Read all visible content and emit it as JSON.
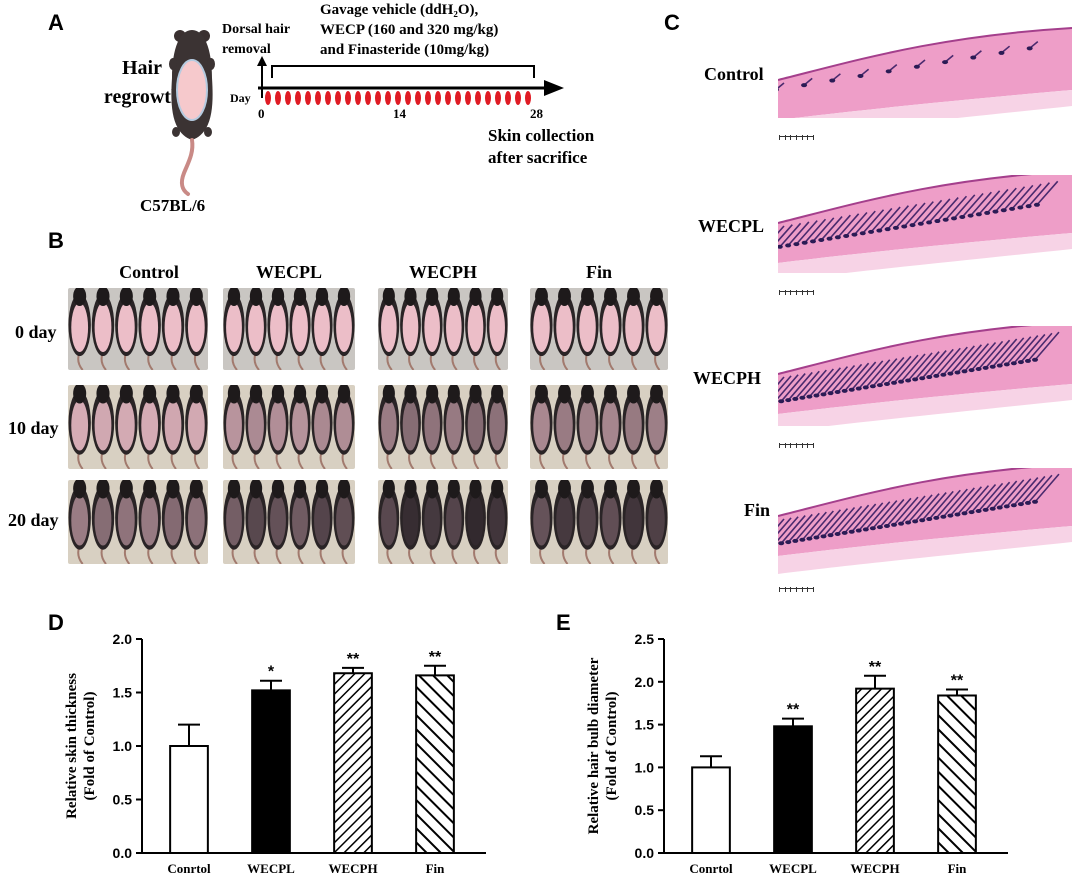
{
  "panels": {
    "A": "A",
    "B": "B",
    "C": "C",
    "D": "D",
    "E": "E"
  },
  "panel_a": {
    "title_line1": "Hair",
    "title_line2": "regrowth",
    "mouse_strain": "C57BL/6",
    "dorsal_line1": "Dorsal hair",
    "dorsal_line2": "removal",
    "gavage_line1": "Gavage vehicle (ddH₂O),",
    "gavage_line2": "WECP (160 and 320 mg/kg)",
    "gavage_line3": "and Finasteride (10mg/kg)",
    "day_label": "Day",
    "day_0": "0",
    "day_14": "14",
    "day_28": "28",
    "skin_line1": "Skin collection",
    "skin_line2": "after sacrifice"
  },
  "panel_b": {
    "columns": [
      "Control",
      "WECPL",
      "WECPH",
      "Fin"
    ],
    "rows": [
      "0 day",
      "10 day",
      "20 day"
    ]
  },
  "panel_c": {
    "rows": [
      "Control",
      "WECPL",
      "WECPH",
      "Fin"
    ]
  },
  "chart_data": [
    {
      "type": "bar",
      "panel": "D",
      "categories": [
        "Conrtol",
        "WECPL",
        "WECPH",
        "Fin"
      ],
      "values": [
        1.0,
        1.52,
        1.68,
        1.66
      ],
      "errors": [
        0.2,
        0.09,
        0.05,
        0.09
      ],
      "significance": [
        "",
        "*",
        "**",
        "**"
      ],
      "fills": [
        "white",
        "black",
        "hatch",
        "hatch-wide"
      ],
      "ylabel_line1": "Relative skin thickness",
      "ylabel_line2": "(Fold of Control)",
      "ylim": [
        0,
        2.0
      ],
      "yticks": [
        "0.0",
        "0.5",
        "1.0",
        "1.5",
        "2.0"
      ]
    },
    {
      "type": "bar",
      "panel": "E",
      "categories": [
        "Conrtol",
        "WECPL",
        "WECPH",
        "Fin"
      ],
      "values": [
        1.0,
        1.48,
        1.92,
        1.84
      ],
      "errors": [
        0.13,
        0.09,
        0.15,
        0.07
      ],
      "significance": [
        "",
        "**",
        "**",
        "**"
      ],
      "fills": [
        "white",
        "black",
        "hatch",
        "hatch-wide"
      ],
      "ylabel_line1": "Relative hair bulb diameter",
      "ylabel_line2": "(Fold of Control)",
      "ylim": [
        0,
        2.5
      ],
      "yticks": [
        "0.0",
        "0.5",
        "1.0",
        "1.5",
        "2.0",
        "2.5"
      ]
    }
  ]
}
